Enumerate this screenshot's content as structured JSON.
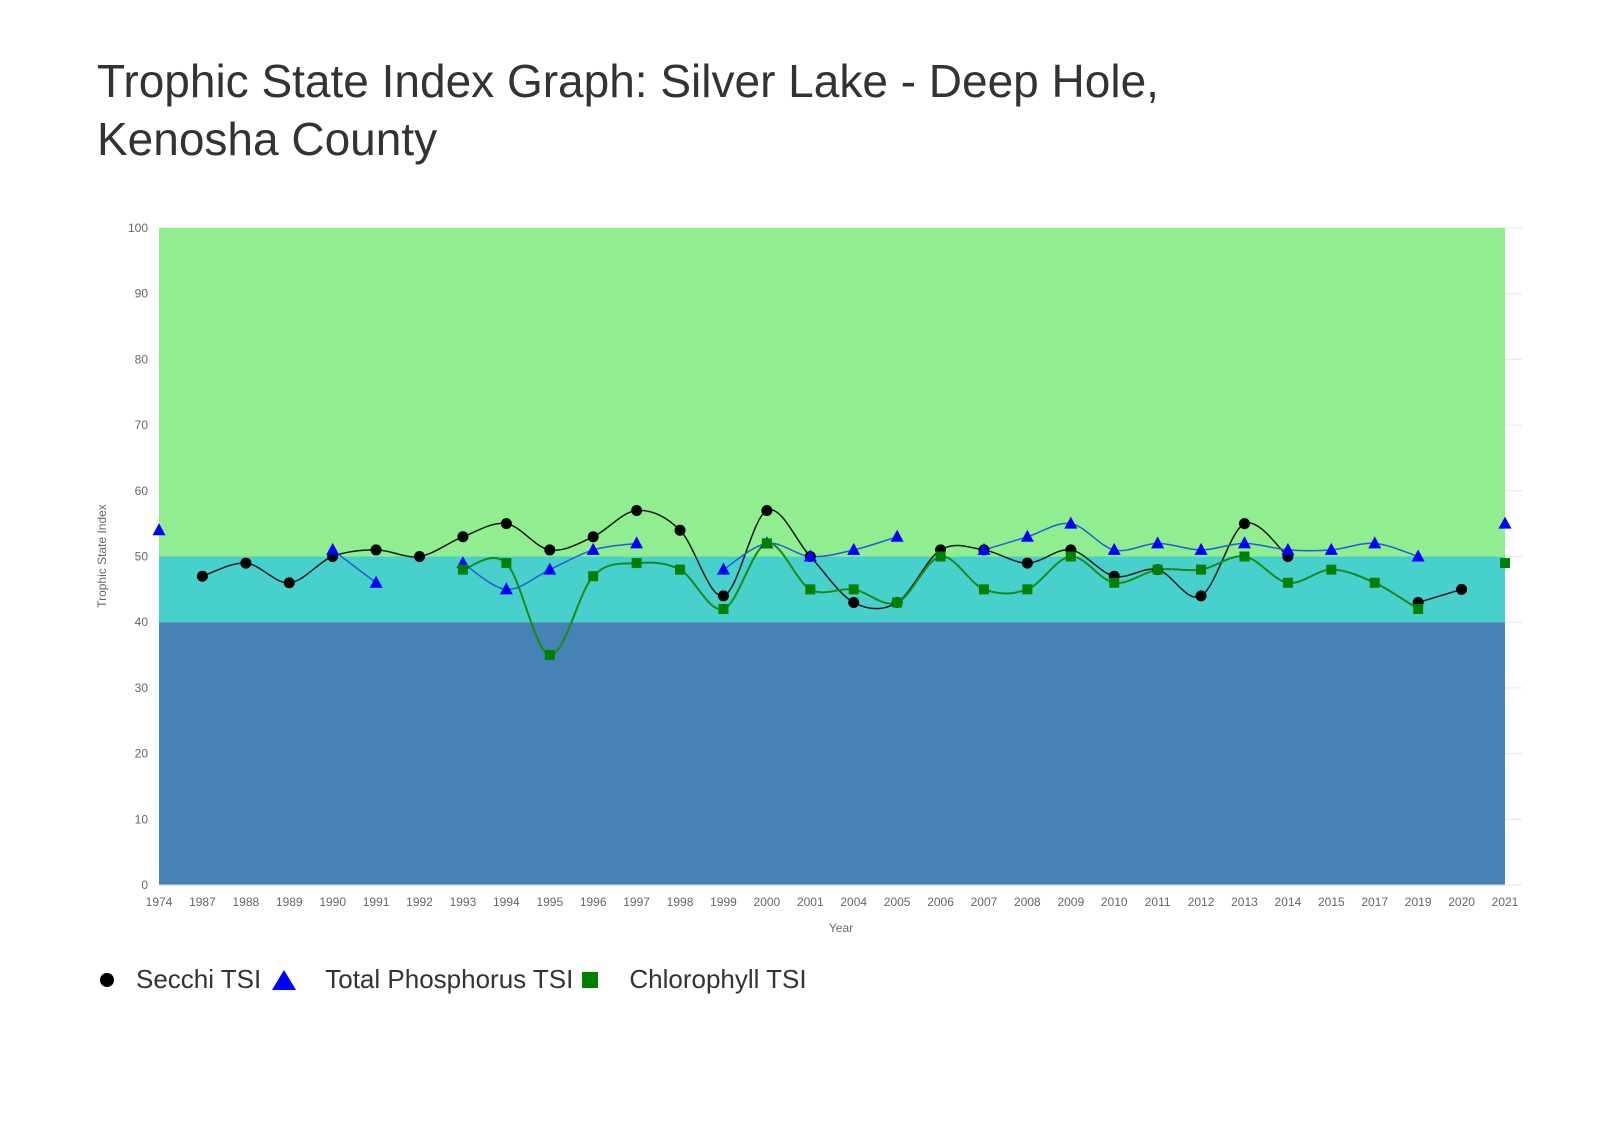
{
  "title": "Trophic State Index Graph: Silver Lake - Deep Hole, Kenosha County",
  "chart_data": {
    "type": "line",
    "title": "Trophic State Index Graph: Silver Lake - Deep Hole, Kenosha County",
    "xlabel": "Year",
    "ylabel": "Trophic State Index",
    "ylim": [
      0,
      100
    ],
    "yticks": [
      0,
      10,
      20,
      30,
      40,
      50,
      60,
      70,
      80,
      90,
      100
    ],
    "grid": false,
    "legend_position": "bottom-left",
    "bands": [
      {
        "from": 0,
        "to": 40,
        "color": "#4682B4"
      },
      {
        "from": 40,
        "to": 50,
        "color": "#48D1CC"
      },
      {
        "from": 50,
        "to": 100,
        "color": "#90EE90"
      }
    ],
    "categories": [
      "1974",
      "1987",
      "1988",
      "1989",
      "1990",
      "1991",
      "1992",
      "1993",
      "1994",
      "1995",
      "1996",
      "1997",
      "1998",
      "1999",
      "2000",
      "2001",
      "2004",
      "2005",
      "2006",
      "2007",
      "2008",
      "2009",
      "2010",
      "2011",
      "2012",
      "2013",
      "2014",
      "2015",
      "2017",
      "2019",
      "2020",
      "2021"
    ],
    "series": [
      {
        "name": "Secchi TSI",
        "marker": "circle",
        "color": "#000000",
        "line_color": "#1a1a1a",
        "values": [
          null,
          47,
          49,
          46,
          50,
          51,
          50,
          53,
          55,
          51,
          53,
          57,
          54,
          44,
          57,
          50,
          43,
          43,
          51,
          51,
          49,
          51,
          47,
          48,
          44,
          55,
          50,
          null,
          null,
          43,
          45,
          null
        ]
      },
      {
        "name": "Total Phosphorus TSI",
        "marker": "triangle",
        "color": "#0000FF",
        "line_color": "#1f5fd6",
        "values": [
          54,
          null,
          null,
          null,
          51,
          46,
          null,
          49,
          45,
          48,
          51,
          52,
          null,
          48,
          52,
          50,
          51,
          53,
          null,
          51,
          53,
          55,
          51,
          52,
          51,
          52,
          51,
          51,
          52,
          50,
          null,
          55
        ]
      },
      {
        "name": "Chlorophyll TSI",
        "marker": "square",
        "color": "#008000",
        "line_color": "#1a8a1a",
        "values": [
          null,
          null,
          null,
          null,
          null,
          null,
          null,
          48,
          49,
          35,
          47,
          49,
          48,
          42,
          52,
          45,
          45,
          43,
          50,
          45,
          45,
          50,
          46,
          48,
          48,
          50,
          46,
          48,
          46,
          42,
          null,
          49
        ]
      }
    ]
  }
}
